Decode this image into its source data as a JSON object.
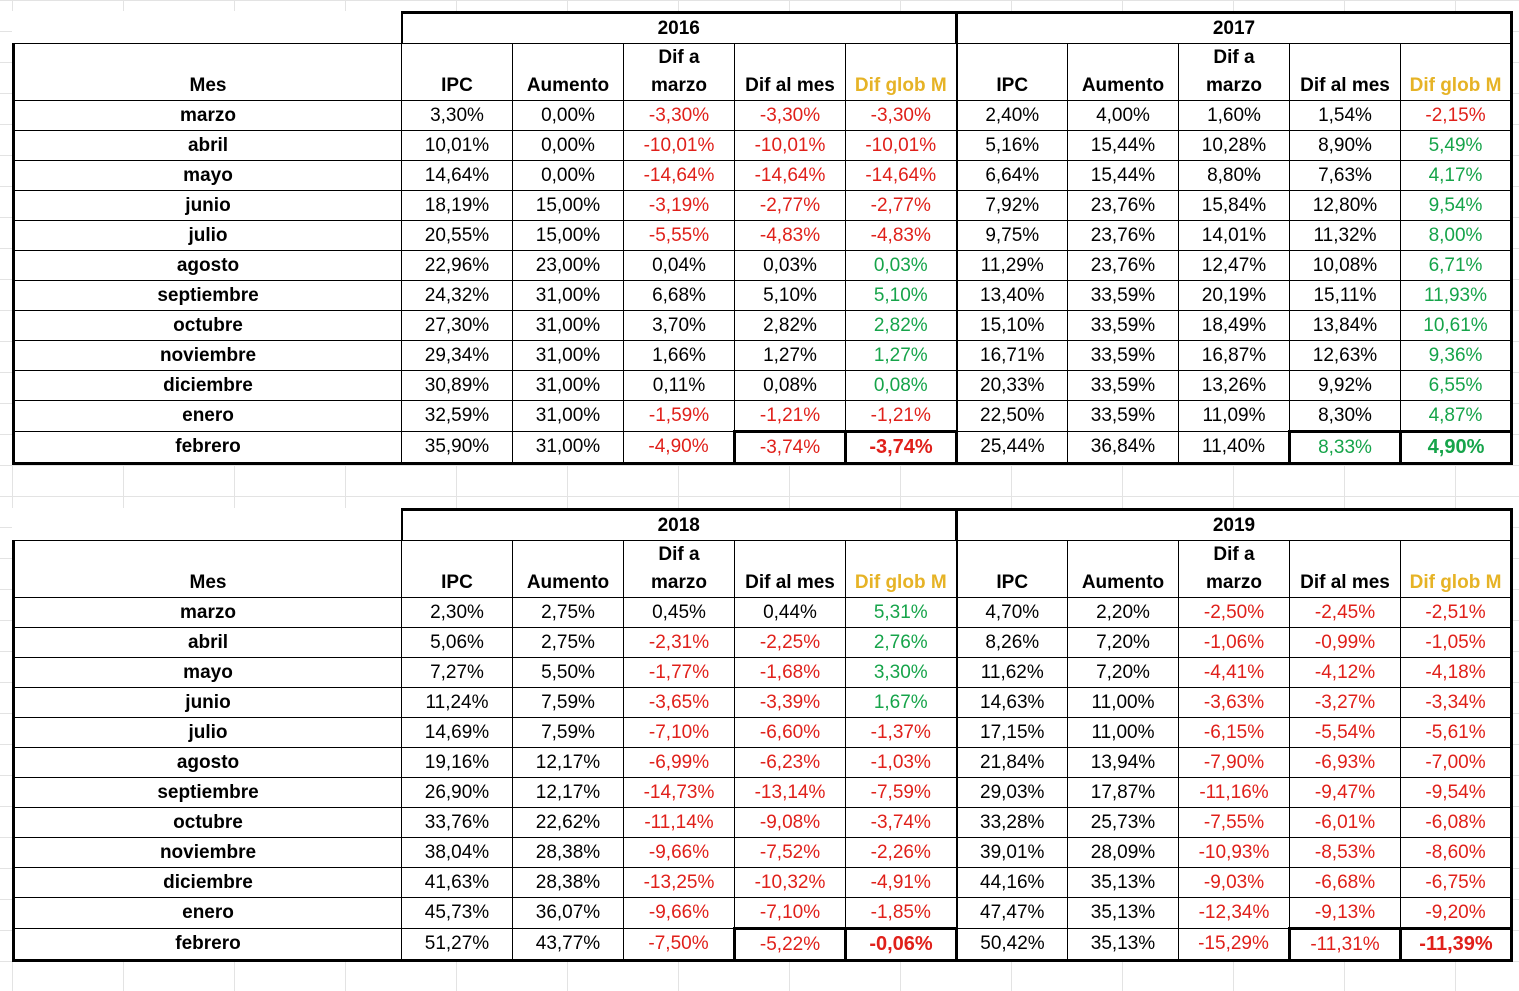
{
  "colors": {
    "red": "#e0201a",
    "green": "#16a44a",
    "gold": "#e6b326"
  },
  "headers": {
    "mes": "Mes",
    "ipc": "IPC",
    "aumento": "Aumento",
    "dif_marzo_line1": "Dif a",
    "dif_marzo_line2": "marzo",
    "dif_mes": "Dif al mes",
    "dif_glob": "Dif glob M"
  },
  "months": [
    "marzo",
    "abril",
    "mayo",
    "junio",
    "julio",
    "agosto",
    "septiembre",
    "octubre",
    "noviembre",
    "diciembre",
    "enero",
    "febrero"
  ],
  "tables": [
    {
      "years": [
        {
          "year": "2016",
          "rows": [
            [
              "3,30%",
              "0,00%",
              "-3,30%",
              "-3,30%",
              "-3,30%"
            ],
            [
              "10,01%",
              "0,00%",
              "-10,01%",
              "-10,01%",
              "-10,01%"
            ],
            [
              "14,64%",
              "0,00%",
              "-14,64%",
              "-14,64%",
              "-14,64%"
            ],
            [
              "18,19%",
              "15,00%",
              "-3,19%",
              "-2,77%",
              "-2,77%"
            ],
            [
              "20,55%",
              "15,00%",
              "-5,55%",
              "-4,83%",
              "-4,83%"
            ],
            [
              "22,96%",
              "23,00%",
              "0,04%",
              "0,03%",
              "0,03%"
            ],
            [
              "24,32%",
              "31,00%",
              "6,68%",
              "5,10%",
              "5,10%"
            ],
            [
              "27,30%",
              "31,00%",
              "3,70%",
              "2,82%",
              "2,82%"
            ],
            [
              "29,34%",
              "31,00%",
              "1,66%",
              "1,27%",
              "1,27%"
            ],
            [
              "30,89%",
              "31,00%",
              "0,11%",
              "0,08%",
              "0,08%"
            ],
            [
              "32,59%",
              "31,00%",
              "-1,59%",
              "-1,21%",
              "-1,21%"
            ],
            [
              "35,90%",
              "31,00%",
              "-4,90%",
              "-3,74%",
              "-3,74%"
            ]
          ]
        },
        {
          "year": "2017",
          "rows": [
            [
              "2,40%",
              "4,00%",
              "1,60%",
              "1,54%",
              "-2,15%"
            ],
            [
              "5,16%",
              "15,44%",
              "10,28%",
              "8,90%",
              "5,49%"
            ],
            [
              "6,64%",
              "15,44%",
              "8,80%",
              "7,63%",
              "4,17%"
            ],
            [
              "7,92%",
              "23,76%",
              "15,84%",
              "12,80%",
              "9,54%"
            ],
            [
              "9,75%",
              "23,76%",
              "14,01%",
              "11,32%",
              "8,00%"
            ],
            [
              "11,29%",
              "23,76%",
              "12,47%",
              "10,08%",
              "6,71%"
            ],
            [
              "13,40%",
              "33,59%",
              "20,19%",
              "15,11%",
              "11,93%"
            ],
            [
              "15,10%",
              "33,59%",
              "18,49%",
              "13,84%",
              "10,61%"
            ],
            [
              "16,71%",
              "33,59%",
              "16,87%",
              "12,63%",
              "9,36%"
            ],
            [
              "20,33%",
              "33,59%",
              "13,26%",
              "9,92%",
              "6,55%"
            ],
            [
              "22,50%",
              "33,59%",
              "11,09%",
              "8,30%",
              "4,87%"
            ],
            [
              "25,44%",
              "36,84%",
              "11,40%",
              "8,33%",
              "4,90%"
            ]
          ]
        }
      ]
    },
    {
      "years": [
        {
          "year": "2018",
          "rows": [
            [
              "2,30%",
              "2,75%",
              "0,45%",
              "0,44%",
              "5,31%"
            ],
            [
              "5,06%",
              "2,75%",
              "-2,31%",
              "-2,25%",
              "2,76%"
            ],
            [
              "7,27%",
              "5,50%",
              "-1,77%",
              "-1,68%",
              "3,30%"
            ],
            [
              "11,24%",
              "7,59%",
              "-3,65%",
              "-3,39%",
              "1,67%"
            ],
            [
              "14,69%",
              "7,59%",
              "-7,10%",
              "-6,60%",
              "-1,37%"
            ],
            [
              "19,16%",
              "12,17%",
              "-6,99%",
              "-6,23%",
              "-1,03%"
            ],
            [
              "26,90%",
              "12,17%",
              "-14,73%",
              "-13,14%",
              "-7,59%"
            ],
            [
              "33,76%",
              "22,62%",
              "-11,14%",
              "-9,08%",
              "-3,74%"
            ],
            [
              "38,04%",
              "28,38%",
              "-9,66%",
              "-7,52%",
              "-2,26%"
            ],
            [
              "41,63%",
              "28,38%",
              "-13,25%",
              "-10,32%",
              "-4,91%"
            ],
            [
              "45,73%",
              "36,07%",
              "-9,66%",
              "-7,10%",
              "-1,85%"
            ],
            [
              "51,27%",
              "43,77%",
              "-7,50%",
              "-5,22%",
              "-0,06%"
            ]
          ]
        },
        {
          "year": "2019",
          "rows": [
            [
              "4,70%",
              "2,20%",
              "-2,50%",
              "-2,45%",
              "-2,51%"
            ],
            [
              "8,26%",
              "7,20%",
              "-1,06%",
              "-0,99%",
              "-1,05%"
            ],
            [
              "11,62%",
              "7,20%",
              "-4,41%",
              "-4,12%",
              "-4,18%"
            ],
            [
              "14,63%",
              "11,00%",
              "-3,63%",
              "-3,27%",
              "-3,34%"
            ],
            [
              "17,15%",
              "11,00%",
              "-6,15%",
              "-5,54%",
              "-5,61%"
            ],
            [
              "21,84%",
              "13,94%",
              "-7,90%",
              "-6,93%",
              "-7,00%"
            ],
            [
              "29,03%",
              "17,87%",
              "-11,16%",
              "-9,47%",
              "-9,54%"
            ],
            [
              "33,28%",
              "25,73%",
              "-7,55%",
              "-6,01%",
              "-6,08%"
            ],
            [
              "39,01%",
              "28,09%",
              "-10,93%",
              "-8,53%",
              "-8,60%"
            ],
            [
              "44,16%",
              "35,13%",
              "-9,03%",
              "-6,68%",
              "-6,75%"
            ],
            [
              "47,47%",
              "35,13%",
              "-12,34%",
              "-9,13%",
              "-9,20%"
            ],
            [
              "50,42%",
              "35,13%",
              "-15,29%",
              "-11,31%",
              "-11,39%"
            ]
          ]
        }
      ]
    }
  ]
}
